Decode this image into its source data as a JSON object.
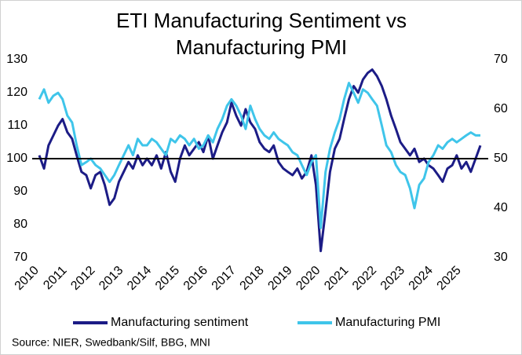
{
  "chart_data": {
    "type": "line",
    "title": "ETI Manufacturing Sentiment vs Manufacturing PMI",
    "source": "Source: NIER, Swedbank/Silf, BBG, MNI",
    "x": [
      2010.25,
      2010.42,
      2010.58,
      2010.75,
      2010.92,
      2011.08,
      2011.25,
      2011.42,
      2011.58,
      2011.75,
      2011.92,
      2012.08,
      2012.25,
      2012.42,
      2012.58,
      2012.75,
      2012.92,
      2013.08,
      2013.25,
      2013.42,
      2013.58,
      2013.75,
      2013.92,
      2014.08,
      2014.25,
      2014.42,
      2014.58,
      2014.75,
      2014.92,
      2015.08,
      2015.25,
      2015.42,
      2015.58,
      2015.75,
      2015.92,
      2016.08,
      2016.25,
      2016.42,
      2016.58,
      2016.75,
      2016.92,
      2017.08,
      2017.25,
      2017.42,
      2017.58,
      2017.75,
      2017.92,
      2018.08,
      2018.25,
      2018.42,
      2018.58,
      2018.75,
      2018.92,
      2019.08,
      2019.25,
      2019.42,
      2019.58,
      2019.75,
      2019.92,
      2020.08,
      2020.25,
      2020.42,
      2020.58,
      2020.75,
      2020.92,
      2021.08,
      2021.25,
      2021.42,
      2021.58,
      2021.75,
      2021.92,
      2022.08,
      2022.25,
      2022.42,
      2022.58,
      2022.75,
      2022.92,
      2023.08,
      2023.25,
      2023.42,
      2023.58,
      2023.75,
      2023.92,
      2024.08,
      2024.25,
      2024.42,
      2024.58,
      2024.75,
      2024.92,
      2025.08,
      2025.25,
      2025.42,
      2025.58,
      2025.75,
      2025.92
    ],
    "series": [
      {
        "name": "Manufacturing sentiment",
        "color": "#1c1c86",
        "axis": "y",
        "values": [
          101,
          97,
          104,
          107,
          110,
          112,
          108,
          106,
          101,
          96,
          95,
          91,
          95,
          96,
          92,
          86,
          88,
          93,
          96,
          99,
          97,
          101,
          98,
          100,
          98,
          101,
          97,
          102,
          96,
          93,
          100,
          104,
          101,
          103,
          105,
          102,
          107,
          100,
          104,
          108,
          111,
          117,
          113,
          110,
          115,
          111,
          109,
          105,
          103,
          102,
          104,
          99,
          97,
          96,
          95,
          97,
          94,
          96,
          101,
          92,
          72,
          84,
          96,
          103,
          106,
          112,
          118,
          122,
          120,
          124,
          126,
          127,
          125,
          122,
          118,
          113,
          109,
          105,
          103,
          101,
          103,
          99,
          100,
          98,
          97,
          95,
          93,
          97,
          98,
          101,
          97,
          99,
          96,
          100,
          104
        ]
      },
      {
        "name": "Manufacturing PMI",
        "color": "#3fc5ea",
        "axis": "y2",
        "values": [
          62,
          64,
          61.3,
          62.7,
          63.3,
          62,
          58.7,
          57.3,
          52.7,
          48.7,
          49.3,
          50,
          48.7,
          48,
          46.7,
          45.3,
          46.7,
          48.7,
          50.7,
          52.7,
          50.7,
          54,
          52.7,
          52.7,
          54,
          53.3,
          52,
          50.7,
          54,
          53.3,
          54.7,
          54,
          52.7,
          54,
          52,
          52.7,
          54.7,
          53.3,
          56,
          58,
          60.7,
          62,
          60.7,
          58.7,
          56,
          60.7,
          58,
          56,
          54.7,
          54,
          55.3,
          54,
          53.3,
          52.7,
          51.3,
          50.7,
          48.7,
          46.7,
          49.3,
          50.7,
          36,
          47.3,
          52,
          55.3,
          58,
          62,
          65.3,
          63.3,
          61.3,
          64,
          63.3,
          62,
          60.7,
          56.7,
          52.7,
          51.3,
          48.7,
          47.3,
          46.7,
          44,
          40,
          44.7,
          46,
          49.3,
          50.7,
          52.7,
          52,
          53.3,
          54,
          53.3,
          54,
          54.7,
          55.3,
          54.7,
          54.7
        ]
      }
    ],
    "xlim": [
      2010,
      2026.2
    ],
    "xticks": [
      2010,
      2011,
      2012,
      2013,
      2014,
      2015,
      2016,
      2017,
      2018,
      2019,
      2020,
      2021,
      2022,
      2023,
      2024,
      2025
    ],
    "ylim": [
      70,
      130
    ],
    "yticks": [
      70,
      80,
      90,
      100,
      110,
      120,
      130
    ],
    "y2lim": [
      30,
      70
    ],
    "y2ticks": [
      30,
      40,
      50,
      60,
      70
    ],
    "reference_line": 100,
    "grid": false
  }
}
